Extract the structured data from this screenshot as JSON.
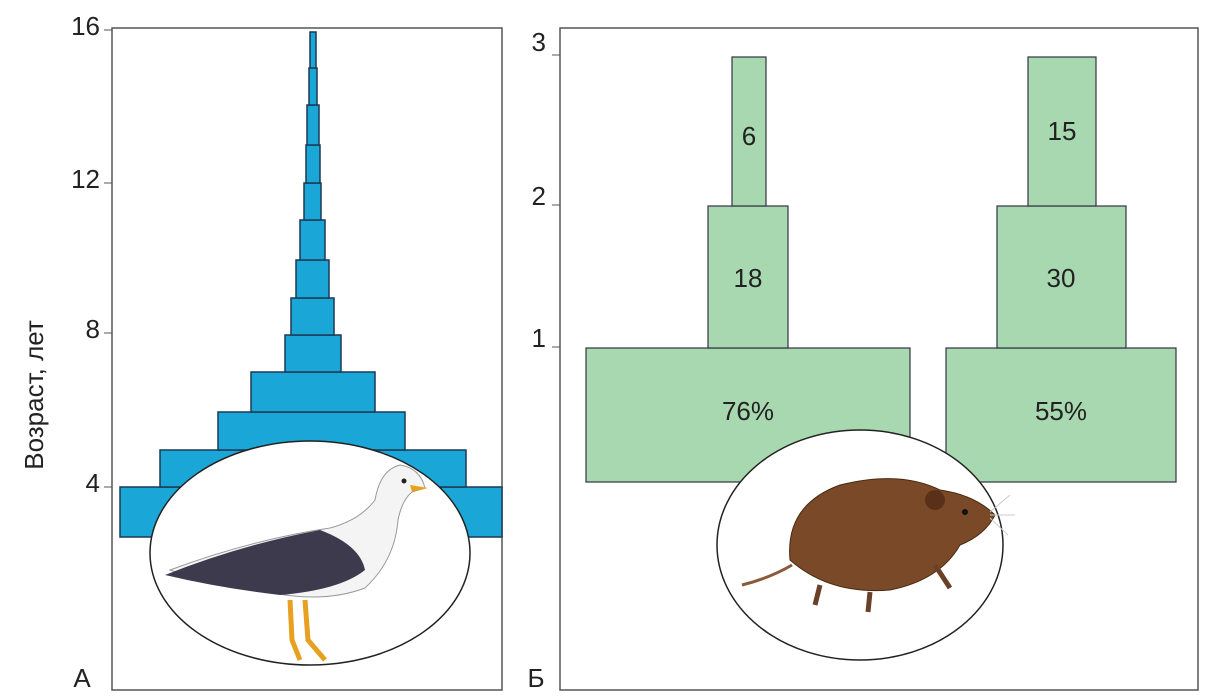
{
  "panels": [
    {
      "label": "А",
      "y_axis_label": "Возраст, лет",
      "yticks": [
        "16",
        "12",
        "8",
        "4"
      ]
    },
    {
      "label": "Б",
      "yticks": [
        "3",
        "2",
        "1"
      ],
      "columns": [
        {
          "levels": [
            "76%",
            "18",
            "6"
          ]
        },
        {
          "levels": [
            "55%",
            "30",
            "15"
          ]
        }
      ]
    }
  ]
}
